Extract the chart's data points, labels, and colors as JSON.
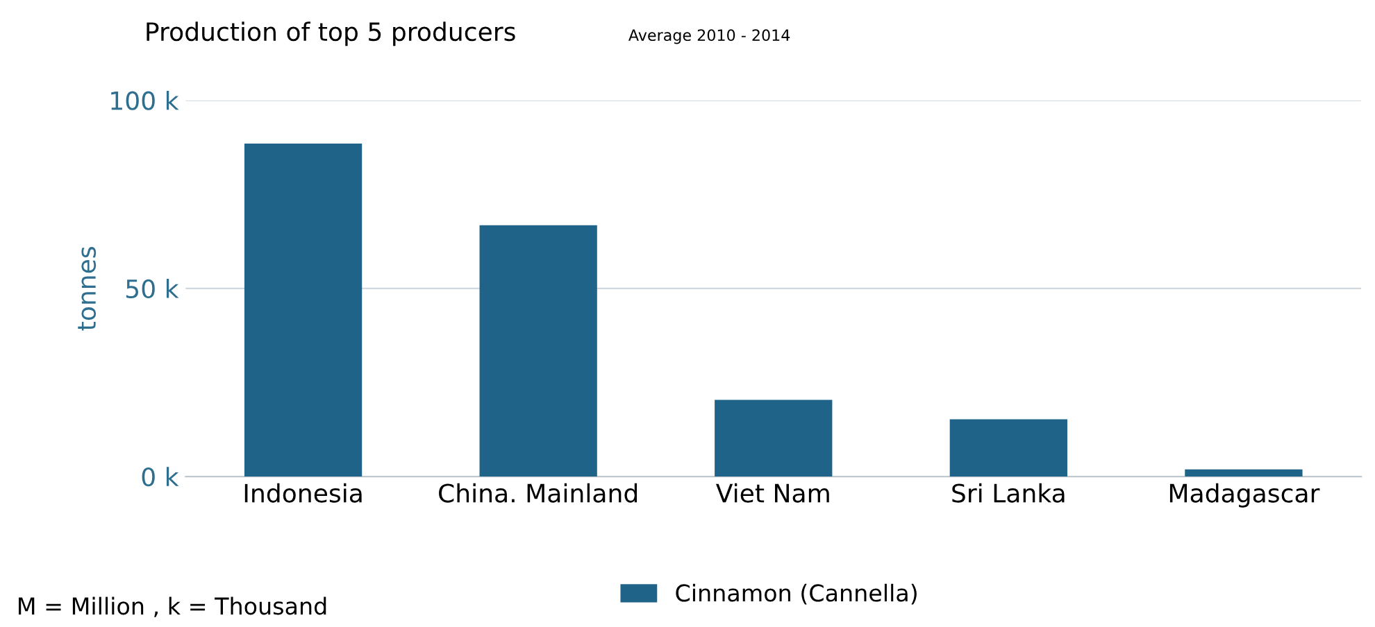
{
  "chart_data": {
    "type": "bar",
    "title": "Production of top 5 producers",
    "subtitle": "Average 2010 - 2014",
    "ylabel": "tonnes",
    "categories": [
      "Indonesia",
      "China. Mainland",
      "Viet Nam",
      "Sri Lanka",
      "Madagascar"
    ],
    "series": [
      {
        "name": "Cinnamon (Cannella)",
        "color": "#1f6488",
        "values": [
          88500,
          66800,
          20400,
          15200,
          1900
        ]
      }
    ],
    "ylim": [
      0,
      100000
    ],
    "yticks": [
      {
        "value": 0,
        "label": "0 k"
      },
      {
        "value": 50000,
        "label": "50 k"
      },
      {
        "value": 100000,
        "label": "100 k"
      }
    ],
    "grid": "y",
    "legend": "bottom",
    "annotations": [
      "M = Million , k = Thousand"
    ]
  }
}
